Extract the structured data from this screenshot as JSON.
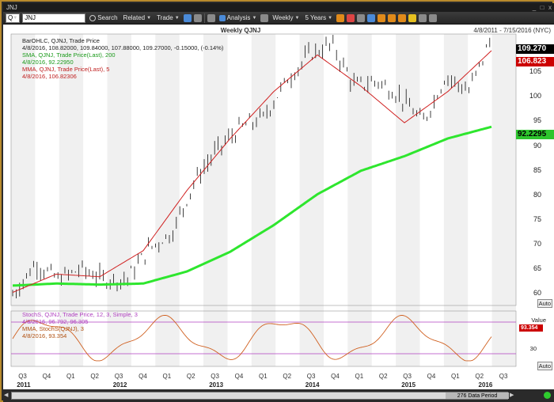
{
  "window": {
    "title": "JNJ"
  },
  "toolbar": {
    "symbol_prefix": "Q",
    "symbol_value": "JNJ",
    "search_label": "Search",
    "related_label": "Related",
    "trade_label": "Trade",
    "analysis_label": "Analysis",
    "period_label": "Weekly",
    "range_label": "5 Years"
  },
  "chart": {
    "title": "Weekly QJNJ",
    "date_range": "4/8/2011 - 7/15/2016 (NYC)",
    "legend_lines": [
      {
        "text": "BarOHLC, QJNJ, Trade Price",
        "color": "black"
      },
      {
        "text": "4/8/2016, 108.82000, 109.84000, 107.88000, 109.27000, -0.15000, (-0.14%)",
        "color": "black"
      },
      {
        "text": "SMA, QJNJ, Trade Price(Last), 200",
        "color": "green"
      },
      {
        "text": "4/8/2016, 92.22950",
        "color": "green"
      },
      {
        "text": "MMA, QJNJ, Trade Price(Last), 5",
        "color": "red"
      },
      {
        "text": "4/8/2016, 106.82306",
        "color": "red"
      }
    ],
    "price_last": "109.270",
    "mma_last": "106.823",
    "sma_last": "92.2295",
    "y_ticks": [
      "105",
      "100",
      "95",
      "90",
      "85",
      "80",
      "75",
      "70",
      "65",
      "60"
    ],
    "auto_label": "Auto",
    "stoch_legend": [
      {
        "text": "StochS, QJNJ, Trade Price, 12, 3, Simple, 3",
        "color": "purple"
      },
      {
        "text": "4/8/2016, 96.792, 96.305",
        "color": "purple"
      },
      {
        "text": "MMA, StochS(QJNJ), 3",
        "color": "orange"
      },
      {
        "text": "4/8/2016, 93.354",
        "color": "orange"
      }
    ],
    "stoch_value_label": "Value",
    "stoch_last": "93.354",
    "stoch_tick": "30",
    "quarters": [
      "Q3",
      "Q4",
      "Q1",
      "Q2",
      "Q3",
      "Q4",
      "Q1",
      "Q2",
      "Q3",
      "Q4",
      "Q1",
      "Q2",
      "Q3",
      "Q4",
      "Q1",
      "Q2",
      "Q3",
      "Q4",
      "Q1",
      "Q2",
      "Q3"
    ],
    "years": [
      "2011",
      "2012",
      "2013",
      "2014",
      "2015",
      "2016"
    ]
  },
  "chart_data": {
    "type": "line",
    "title": "Weekly QJNJ",
    "x_range": [
      "4/8/2011",
      "7/15/2016"
    ],
    "ylim": [
      58,
      110
    ],
    "series": [
      {
        "name": "BarOHLC, QJNJ, Trade Price",
        "x": [
          "2011-04",
          "2011-07",
          "2011-10",
          "2012-01",
          "2012-04",
          "2012-07",
          "2012-10",
          "2013-01",
          "2013-04",
          "2013-07",
          "2013-10",
          "2014-01",
          "2014-04",
          "2014-07",
          "2014-10",
          "2015-01",
          "2015-04",
          "2015-07",
          "2015-10",
          "2016-01",
          "2016-04",
          "2016-07"
        ],
        "values": [
          60,
          66,
          63,
          65,
          63,
          63,
          69,
          72,
          82,
          88,
          92,
          94,
          101,
          106,
          108,
          100,
          101,
          98,
          93,
          102,
          99,
          109.27
        ]
      },
      {
        "name": "SMA, QJNJ, Trade Price(Last), 200",
        "x": [
          "2011-04",
          "2011-10",
          "2012-04",
          "2012-10",
          "2013-04",
          "2013-10",
          "2014-04",
          "2014-10",
          "2015-04",
          "2015-10",
          "2016-04",
          "2016-07"
        ],
        "values": [
          61.8,
          62.2,
          62,
          62.2,
          64.5,
          68.3,
          73.4,
          79.3,
          83.8,
          86.6,
          90,
          92.23
        ]
      },
      {
        "name": "MMA, QJNJ, Trade Price(Last), 5",
        "x": [
          "2011-04",
          "2011-10",
          "2012-04",
          "2012-10",
          "2013-04",
          "2013-10",
          "2014-04",
          "2014-10",
          "2015-04",
          "2015-10",
          "2016-04",
          "2016-07"
        ],
        "values": [
          60.5,
          64,
          63.5,
          68.5,
          80,
          90,
          99,
          106,
          100,
          93,
          99,
          106.82
        ]
      }
    ],
    "grid": true
  }
}
